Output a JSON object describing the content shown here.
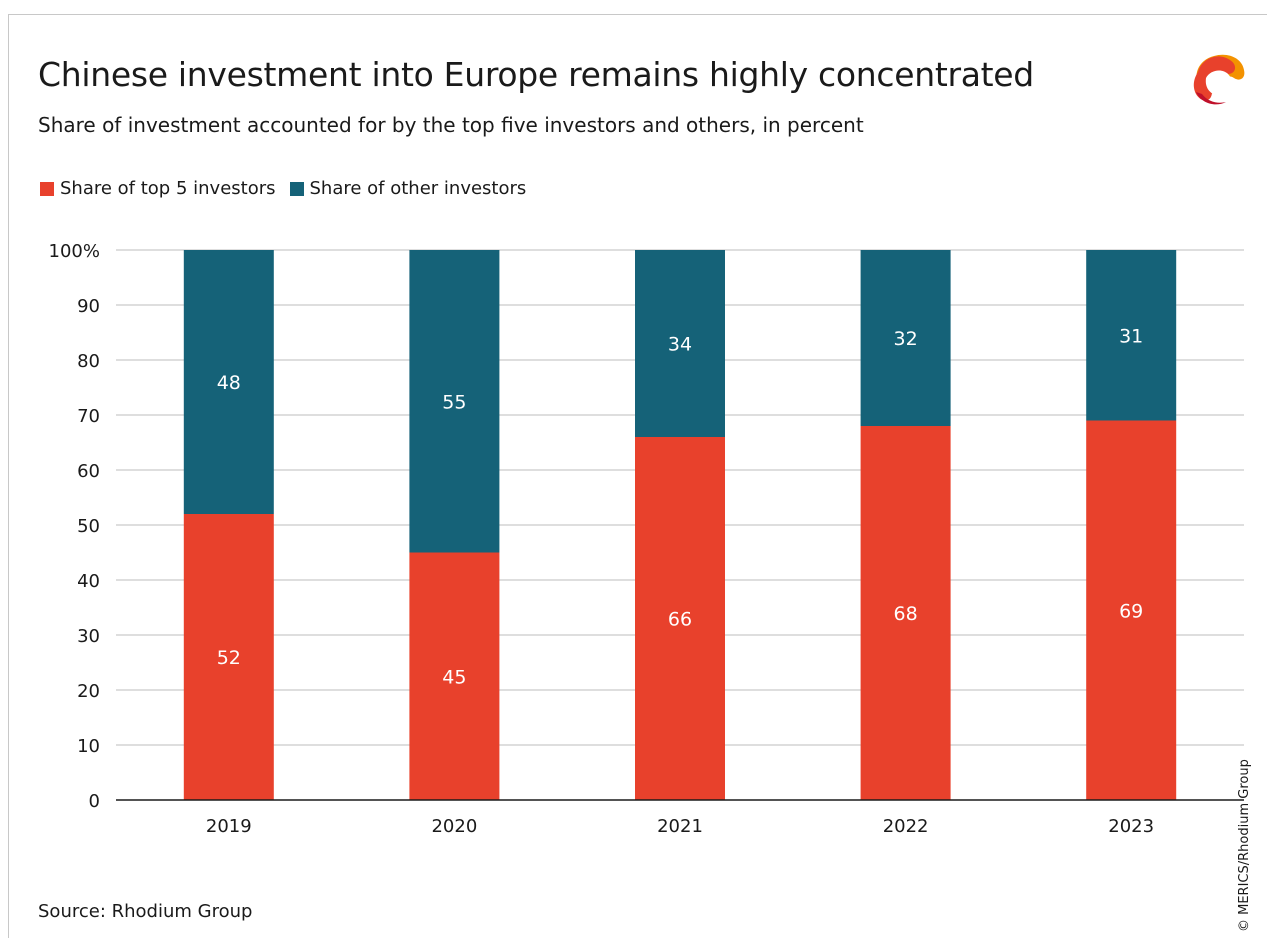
{
  "title": "Chinese investment into Europe remains highly concentrated",
  "subtitle": "Share of investment accounted for by the top five investors and others, in percent",
  "source": "Source: Rhodium Group",
  "copyright": "© MERICS/Rhodium Group",
  "logo_icon": "merics-logo-icon",
  "chart_data": {
    "type": "bar",
    "stacked": true,
    "categories": [
      "2019",
      "2020",
      "2021",
      "2022",
      "2023"
    ],
    "series": [
      {
        "name": "Share of top 5 investors",
        "color": "#e8412c",
        "values": [
          52,
          45,
          66,
          68,
          69
        ]
      },
      {
        "name": "Share of other investors",
        "color": "#156278",
        "values": [
          48,
          55,
          34,
          32,
          31
        ]
      }
    ],
    "ylim": [
      0,
      100
    ],
    "yticks": [
      0,
      10,
      20,
      30,
      40,
      50,
      60,
      70,
      80,
      90,
      100
    ],
    "ytick_labels": [
      "0",
      "10",
      "20",
      "30",
      "40",
      "50",
      "60",
      "70",
      "80",
      "90",
      "100%"
    ],
    "grid": true,
    "legend_position": "top-left"
  }
}
